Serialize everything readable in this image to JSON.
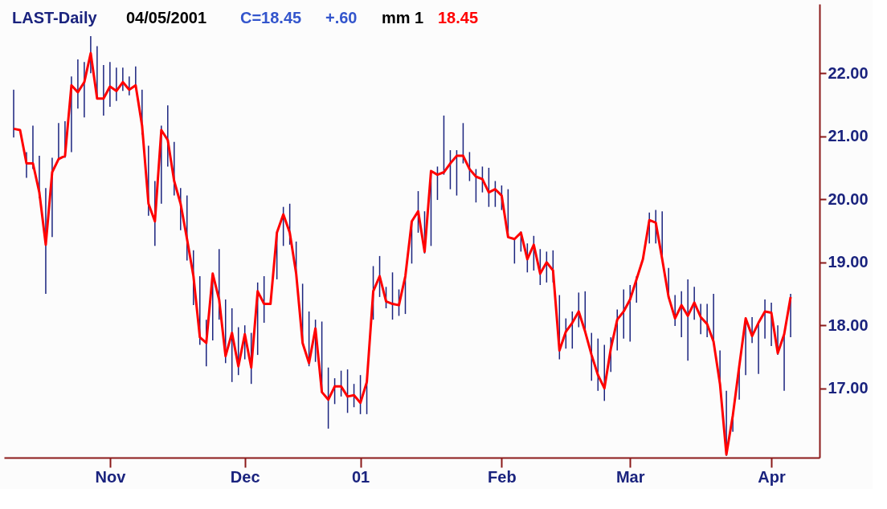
{
  "chart_data": {
    "type": "line",
    "title": "LAST-Daily",
    "annotations": [
      "04/05/2001",
      "C=18.45",
      "+.60",
      "mm 1",
      "18.45"
    ],
    "categories": [
      null,
      null,
      null,
      null,
      null,
      null,
      null,
      null,
      null,
      null,
      null,
      null,
      null,
      null,
      null,
      "Nov",
      null,
      null,
      null,
      null,
      null,
      null,
      null,
      null,
      null,
      null,
      null,
      null,
      null,
      null,
      null,
      null,
      null,
      null,
      null,
      null,
      "Dec",
      null,
      null,
      null,
      null,
      null,
      null,
      null,
      null,
      null,
      null,
      null,
      null,
      null,
      null,
      null,
      null,
      null,
      "01",
      null,
      null,
      null,
      null,
      null,
      null,
      null,
      null,
      null,
      null,
      null,
      null,
      null,
      null,
      null,
      null,
      null,
      null,
      null,
      null,
      null,
      "Feb",
      null,
      null,
      null,
      null,
      null,
      null,
      null,
      null,
      null,
      null,
      null,
      null,
      null,
      null,
      null,
      null,
      null,
      null,
      null,
      "Mar",
      null,
      null,
      null,
      null,
      null,
      null,
      null,
      null,
      null,
      null,
      null,
      null,
      null,
      null,
      null,
      null,
      null,
      null,
      null,
      null,
      null,
      "Apr",
      null,
      null,
      null
    ],
    "series": [
      {
        "color": "#ff0000",
        "values": [
          21.12,
          21.1,
          20.57,
          20.57,
          20.11,
          19.28,
          20.43,
          20.64,
          20.69,
          21.81,
          21.7,
          21.86,
          22.32,
          21.6,
          21.6,
          21.79,
          21.72,
          21.86,
          21.74,
          21.81,
          21.17,
          19.93,
          19.65,
          21.1,
          20.94,
          20.29,
          19.93,
          19.37,
          18.78,
          17.81,
          17.72,
          18.82,
          18.41,
          17.51,
          17.88,
          17.35,
          17.86,
          17.33,
          18.54,
          18.34,
          18.34,
          19.47,
          19.76,
          19.47,
          18.82,
          17.72,
          17.4,
          17.95,
          16.94,
          16.82,
          17.03,
          17.03,
          16.87,
          16.89,
          16.77,
          17.1,
          18.54,
          18.78,
          18.38,
          18.34,
          18.32,
          18.78,
          19.65,
          19.81,
          19.17,
          20.45,
          20.39,
          20.43,
          20.57,
          20.69,
          20.69,
          20.48,
          20.36,
          20.32,
          20.11,
          20.16,
          20.06,
          19.4,
          19.37,
          19.47,
          19.05,
          19.28,
          18.82,
          19.0,
          18.87,
          17.6,
          17.9,
          18.04,
          18.22,
          17.9,
          17.53,
          17.21,
          17.0,
          17.63,
          18.09,
          18.22,
          18.41,
          18.73,
          19.05,
          19.67,
          19.63,
          19.05,
          18.45,
          18.11,
          18.32,
          18.15,
          18.36,
          18.13,
          18.02,
          17.74,
          17.07,
          15.95,
          16.57,
          17.35,
          18.11,
          17.83,
          18.04,
          18.22,
          18.2,
          17.56,
          17.86,
          18.45
        ],
        "errors": [
          [
            20.98,
            21.74
          ],
          null,
          [
            20.34,
            20.75
          ],
          [
            20.48,
            21.17
          ],
          [
            20.02,
            20.69
          ],
          [
            18.5,
            20.18
          ],
          [
            19.4,
            20.66
          ],
          [
            20.64,
            21.21
          ],
          [
            20.66,
            21.24
          ],
          [
            20.75,
            21.95
          ],
          [
            21.44,
            22.22
          ],
          [
            21.3,
            22.18
          ],
          [
            22.0,
            22.59
          ],
          [
            21.6,
            22.43
          ],
          [
            21.33,
            22.13
          ],
          [
            21.47,
            22.18
          ],
          [
            21.56,
            22.09
          ],
          [
            21.72,
            22.09
          ],
          [
            21.65,
            21.95
          ],
          [
            21.77,
            22.11
          ],
          [
            21.03,
            21.74
          ],
          [
            19.74,
            20.85
          ],
          [
            19.26,
            20.29
          ],
          [
            19.93,
            21.17
          ],
          [
            20.52,
            21.49
          ],
          [
            20.06,
            20.91
          ],
          [
            19.51,
            20.18
          ],
          [
            19.03,
            20.06
          ],
          [
            18.32,
            19.19
          ],
          [
            17.69,
            18.78
          ],
          [
            17.35,
            18.09
          ],
          [
            17.76,
            18.82
          ],
          [
            18.09,
            19.21
          ],
          [
            17.4,
            18.41
          ],
          [
            17.1,
            18.27
          ],
          [
            17.21,
            17.97
          ],
          [
            17.46,
            18.0
          ],
          [
            17.07,
            17.88
          ],
          [
            17.53,
            18.68
          ],
          [
            18.04,
            18.78
          ],
          null,
          [
            18.73,
            19.47
          ],
          [
            19.26,
            19.88
          ],
          [
            19.28,
            19.93
          ],
          [
            18.82,
            19.33
          ],
          [
            17.72,
            18.66
          ],
          [
            17.35,
            18.22
          ],
          [
            17.42,
            18.09
          ],
          [
            16.94,
            18.06
          ],
          [
            16.36,
            17.33
          ],
          [
            16.75,
            17.16
          ],
          [
            16.87,
            17.28
          ],
          [
            16.61,
            17.3
          ],
          [
            16.7,
            17.07
          ],
          [
            16.59,
            17.21
          ],
          [
            16.59,
            17.1
          ],
          [
            18.09,
            18.94
          ],
          [
            18.45,
            19.1
          ],
          [
            18.27,
            18.61
          ],
          [
            18.09,
            18.84
          ],
          [
            18.15,
            18.57
          ],
          [
            18.18,
            18.78
          ],
          [
            18.98,
            19.65
          ],
          [
            19.47,
            20.13
          ],
          [
            19.14,
            19.81
          ],
          [
            19.26,
            20.45
          ],
          [
            19.99,
            20.52
          ],
          [
            20.39,
            21.33
          ],
          [
            20.16,
            20.78
          ],
          [
            20.06,
            20.78
          ],
          [
            20.57,
            21.21
          ],
          [
            20.29,
            20.75
          ],
          [
            19.95,
            20.48
          ],
          [
            20.11,
            20.52
          ],
          [
            19.88,
            20.5
          ],
          [
            19.88,
            20.29
          ],
          [
            19.83,
            20.22
          ],
          [
            19.4,
            20.16
          ],
          [
            18.98,
            19.37
          ],
          [
            19.17,
            19.49
          ],
          [
            18.84,
            19.3
          ],
          [
            18.87,
            19.42
          ],
          [
            18.64,
            19.21
          ],
          [
            18.68,
            19.17
          ],
          [
            18.68,
            19.19
          ],
          [
            17.46,
            18.48
          ],
          [
            17.63,
            18.11
          ],
          [
            17.63,
            18.22
          ],
          [
            17.97,
            18.52
          ],
          [
            17.9,
            18.54
          ],
          [
            17.12,
            17.88
          ],
          [
            16.96,
            17.79
          ],
          [
            16.8,
            17.69
          ],
          [
            17.26,
            17.81
          ],
          [
            17.6,
            18.25
          ],
          [
            17.79,
            18.57
          ],
          [
            17.74,
            18.64
          ],
          [
            18.36,
            18.78
          ],
          null,
          [
            19.3,
            19.79
          ],
          [
            19.3,
            19.83
          ],
          [
            19.05,
            19.81
          ],
          [
            18.43,
            18.91
          ],
          [
            17.99,
            18.48
          ],
          [
            17.81,
            18.54
          ],
          [
            17.44,
            18.73
          ],
          [
            18.09,
            18.61
          ],
          [
            17.86,
            18.34
          ],
          [
            17.81,
            18.34
          ],
          [
            17.74,
            18.5
          ],
          [
            17.07,
            17.6
          ],
          [
            15.93,
            16.96
          ],
          [
            16.31,
            16.59
          ],
          [
            16.82,
            17.35
          ],
          [
            17.21,
            18.11
          ],
          [
            17.72,
            18.13
          ],
          [
            17.23,
            18.04
          ],
          [
            17.79,
            18.41
          ],
          [
            17.67,
            18.36
          ],
          [
            17.53,
            18.0
          ],
          [
            16.96,
            17.86
          ],
          [
            17.81,
            18.5
          ]
        ]
      }
    ],
    "ylim": [
      15.9,
      23.1
    ],
    "yticks": [
      {
        "value": 17,
        "label": "17.00"
      },
      {
        "value": 18,
        "label": "18.00"
      },
      {
        "value": 19,
        "label": "19.00"
      },
      {
        "value": 20,
        "label": "20.00"
      },
      {
        "value": 21,
        "label": "21.00"
      },
      {
        "value": 22,
        "label": "22.00"
      }
    ],
    "grid": false,
    "marker": "none",
    "line_style": "solid"
  }
}
